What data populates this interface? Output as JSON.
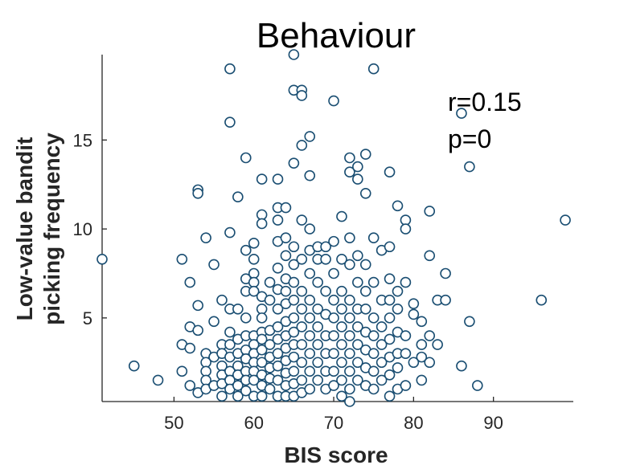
{
  "chart_data": {
    "type": "scatter",
    "title": "Behaviour",
    "xlabel": "BIS score",
    "ylabel_lines": [
      "Low-value bandit",
      "picking frequency"
    ],
    "xlim": [
      41,
      100
    ],
    "ylim": [
      0.3,
      19.8
    ],
    "xticks": [
      50,
      60,
      70,
      80,
      90
    ],
    "yticks": [
      5,
      10,
      15
    ],
    "marker_color": "#1a4e72",
    "grid": false,
    "annotations": [
      "r=0.15",
      "p=0"
    ],
    "points": [
      [
        41,
        8.3
      ],
      [
        45,
        2.3
      ],
      [
        48,
        1.5
      ],
      [
        51,
        8.3
      ],
      [
        51,
        3.5
      ],
      [
        51,
        2.0
      ],
      [
        52,
        7.0
      ],
      [
        52,
        4.5
      ],
      [
        52,
        3.3
      ],
      [
        52,
        1.2
      ],
      [
        53,
        12.2
      ],
      [
        53,
        12.0
      ],
      [
        53,
        5.7
      ],
      [
        53,
        4.3
      ],
      [
        53,
        0.8
      ],
      [
        54,
        9.5
      ],
      [
        54,
        3.0
      ],
      [
        54,
        2.5
      ],
      [
        54,
        2.0
      ],
      [
        54,
        1.5
      ],
      [
        54,
        1.0
      ],
      [
        55,
        8.0
      ],
      [
        55,
        4.8
      ],
      [
        55,
        2.8
      ],
      [
        55,
        1.2
      ],
      [
        56,
        6.0
      ],
      [
        56,
        3.5
      ],
      [
        56,
        3.0
      ],
      [
        56,
        2.3
      ],
      [
        56,
        1.8
      ],
      [
        56,
        1.3
      ],
      [
        56,
        0.6
      ],
      [
        57,
        19.0
      ],
      [
        57,
        16.0
      ],
      [
        57,
        9.8
      ],
      [
        57,
        5.5
      ],
      [
        57,
        4.2
      ],
      [
        57,
        3.5
      ],
      [
        57,
        2.8
      ],
      [
        57,
        2.0
      ],
      [
        57,
        1.5
      ],
      [
        57,
        1.0
      ],
      [
        58,
        11.8
      ],
      [
        58,
        5.5
      ],
      [
        58,
        3.8
      ],
      [
        58,
        3.0
      ],
      [
        58,
        2.3
      ],
      [
        58,
        1.8
      ],
      [
        58,
        1.2
      ],
      [
        58,
        0.6
      ],
      [
        59,
        14.0
      ],
      [
        59,
        8.8
      ],
      [
        59,
        7.2
      ],
      [
        59,
        6.5
      ],
      [
        59,
        5.0
      ],
      [
        59,
        4.0
      ],
      [
        59,
        3.2
      ],
      [
        59,
        2.7
      ],
      [
        59,
        2.0
      ],
      [
        59,
        1.5
      ],
      [
        59,
        0.9
      ],
      [
        60,
        9.2
      ],
      [
        60,
        8.3
      ],
      [
        60,
        7.5
      ],
      [
        60,
        7.0
      ],
      [
        60,
        6.5
      ],
      [
        60,
        4.0
      ],
      [
        60,
        3.5
      ],
      [
        60,
        3.0
      ],
      [
        60,
        2.5
      ],
      [
        60,
        2.0
      ],
      [
        60,
        1.5
      ],
      [
        60,
        0.6
      ],
      [
        61,
        12.8
      ],
      [
        61,
        10.8
      ],
      [
        61,
        10.3
      ],
      [
        61,
        6.2
      ],
      [
        61,
        5.5
      ],
      [
        61,
        5.0
      ],
      [
        61,
        4.2
      ],
      [
        61,
        3.8
      ],
      [
        61,
        3.2
      ],
      [
        61,
        2.5
      ],
      [
        61,
        1.8
      ],
      [
        61,
        1.2
      ],
      [
        61,
        0.6
      ],
      [
        62,
        7.0
      ],
      [
        62,
        6.0
      ],
      [
        62,
        4.3
      ],
      [
        62,
        3.5
      ],
      [
        62,
        2.8
      ],
      [
        62,
        2.2
      ],
      [
        62,
        1.6
      ],
      [
        62,
        1.0
      ],
      [
        63,
        12.8
      ],
      [
        63,
        11.2
      ],
      [
        63,
        10.5
      ],
      [
        63,
        9.3
      ],
      [
        63,
        7.8
      ],
      [
        63,
        6.6
      ],
      [
        63,
        5.5
      ],
      [
        63,
        4.5
      ],
      [
        63,
        3.8
      ],
      [
        63,
        3.0
      ],
      [
        63,
        2.3
      ],
      [
        63,
        1.5
      ],
      [
        63,
        0.6
      ],
      [
        64,
        11.2
      ],
      [
        64,
        9.5
      ],
      [
        64,
        8.5
      ],
      [
        64,
        7.2
      ],
      [
        64,
        6.5
      ],
      [
        64,
        5.8
      ],
      [
        64,
        4.8
      ],
      [
        64,
        4.0
      ],
      [
        64,
        3.3
      ],
      [
        64,
        2.6
      ],
      [
        64,
        1.9
      ],
      [
        64,
        1.2
      ],
      [
        64,
        0.6
      ],
      [
        65,
        19.8
      ],
      [
        65,
        17.8
      ],
      [
        65,
        13.7
      ],
      [
        65,
        9.0
      ],
      [
        65,
        8.0
      ],
      [
        65,
        7.0
      ],
      [
        65,
        6.0
      ],
      [
        65,
        5.0
      ],
      [
        65,
        4.2
      ],
      [
        65,
        3.5
      ],
      [
        65,
        2.8
      ],
      [
        65,
        2.0
      ],
      [
        65,
        1.3
      ],
      [
        65,
        0.6
      ],
      [
        66,
        17.8
      ],
      [
        66,
        17.5
      ],
      [
        66,
        14.7
      ],
      [
        66,
        10.5
      ],
      [
        66,
        8.3
      ],
      [
        66,
        6.5
      ],
      [
        66,
        5.5
      ],
      [
        66,
        4.5
      ],
      [
        66,
        3.5
      ],
      [
        66,
        2.5
      ],
      [
        66,
        1.5
      ],
      [
        66,
        0.8
      ],
      [
        67,
        15.2
      ],
      [
        67,
        13.0
      ],
      [
        67,
        10.0
      ],
      [
        67,
        8.8
      ],
      [
        67,
        7.5
      ],
      [
        67,
        6.0
      ],
      [
        67,
        5.0
      ],
      [
        67,
        4.0
      ],
      [
        67,
        3.0
      ],
      [
        67,
        2.0
      ],
      [
        67,
        1.0
      ],
      [
        68,
        9.0
      ],
      [
        68,
        8.3
      ],
      [
        68,
        7.0
      ],
      [
        68,
        5.5
      ],
      [
        68,
        4.5
      ],
      [
        68,
        3.5
      ],
      [
        68,
        2.5
      ],
      [
        68,
        1.5
      ],
      [
        69,
        9.0
      ],
      [
        69,
        8.3
      ],
      [
        69,
        6.5
      ],
      [
        69,
        5.2
      ],
      [
        69,
        4.0
      ],
      [
        69,
        3.0
      ],
      [
        69,
        2.0
      ],
      [
        69,
        1.0
      ],
      [
        70,
        17.2
      ],
      [
        70,
        9.3
      ],
      [
        70,
        7.5
      ],
      [
        70,
        6.0
      ],
      [
        70,
        5.0
      ],
      [
        70,
        4.0
      ],
      [
        70,
        3.0
      ],
      [
        70,
        2.0
      ],
      [
        70,
        1.2
      ],
      [
        71,
        10.7
      ],
      [
        71,
        8.3
      ],
      [
        71,
        6.5
      ],
      [
        71,
        5.5
      ],
      [
        71,
        4.5
      ],
      [
        71,
        3.5
      ],
      [
        71,
        2.5
      ],
      [
        71,
        1.5
      ],
      [
        71,
        0.6
      ],
      [
        72,
        14.0
      ],
      [
        72,
        13.2
      ],
      [
        72,
        9.5
      ],
      [
        72,
        8.0
      ],
      [
        72,
        6.0
      ],
      [
        72,
        5.0
      ],
      [
        72,
        4.0
      ],
      [
        72,
        3.0
      ],
      [
        72,
        2.0
      ],
      [
        72,
        1.0
      ],
      [
        72,
        0.3
      ],
      [
        73,
        13.5
      ],
      [
        73,
        12.8
      ],
      [
        73,
        8.5
      ],
      [
        73,
        7.0
      ],
      [
        73,
        5.5
      ],
      [
        73,
        4.5
      ],
      [
        73,
        3.5
      ],
      [
        73,
        2.5
      ],
      [
        73,
        1.5
      ],
      [
        74,
        14.2
      ],
      [
        74,
        12.0
      ],
      [
        74,
        8.0
      ],
      [
        74,
        6.5
      ],
      [
        74,
        5.5
      ],
      [
        74,
        4.2
      ],
      [
        74,
        3.2
      ],
      [
        74,
        2.2
      ],
      [
        74,
        1.2
      ],
      [
        75,
        19.0
      ],
      [
        75,
        9.5
      ],
      [
        75,
        7.0
      ],
      [
        75,
        5.0
      ],
      [
        75,
        4.0
      ],
      [
        75,
        3.0
      ],
      [
        75,
        2.0
      ],
      [
        75,
        1.0
      ],
      [
        76,
        8.8
      ],
      [
        76,
        6.0
      ],
      [
        76,
        4.5
      ],
      [
        76,
        3.5
      ],
      [
        76,
        2.5
      ],
      [
        76,
        1.5
      ],
      [
        77,
        13.2
      ],
      [
        77,
        9.0
      ],
      [
        77,
        7.2
      ],
      [
        77,
        6.0
      ],
      [
        77,
        5.0
      ],
      [
        77,
        3.8
      ],
      [
        77,
        2.8
      ],
      [
        77,
        1.8
      ],
      [
        77,
        0.6
      ],
      [
        78,
        11.3
      ],
      [
        78,
        6.5
      ],
      [
        78,
        5.5
      ],
      [
        78,
        4.2
      ],
      [
        78,
        3.0
      ],
      [
        78,
        2.2
      ],
      [
        78,
        1.0
      ],
      [
        79,
        10.5
      ],
      [
        79,
        10.0
      ],
      [
        79,
        7.0
      ],
      [
        79,
        4.0
      ],
      [
        79,
        3.0
      ],
      [
        79,
        1.2
      ],
      [
        80,
        5.8
      ],
      [
        80,
        5.2
      ],
      [
        80,
        2.5
      ],
      [
        81,
        4.8
      ],
      [
        81,
        3.5
      ],
      [
        81,
        2.8
      ],
      [
        81,
        1.5
      ],
      [
        82,
        11.0
      ],
      [
        82,
        8.5
      ],
      [
        82,
        4.0
      ],
      [
        82,
        2.5
      ],
      [
        83,
        6.0
      ],
      [
        83,
        3.5
      ],
      [
        84,
        7.5
      ],
      [
        84,
        6.0
      ],
      [
        86,
        16.5
      ],
      [
        86,
        2.3
      ],
      [
        87,
        13.5
      ],
      [
        87,
        4.8
      ],
      [
        88,
        1.2
      ],
      [
        96,
        6.0
      ],
      [
        99,
        10.5
      ]
    ]
  }
}
